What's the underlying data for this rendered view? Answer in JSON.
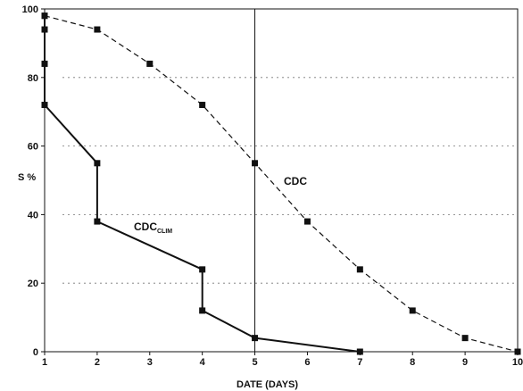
{
  "chart_data": {
    "type": "line",
    "title": "",
    "xlabel": "DATE (DAYS)",
    "ylabel": "S %",
    "xlim": [
      1,
      10
    ],
    "ylim": [
      0,
      100
    ],
    "x_ticks": [
      1,
      2,
      3,
      4,
      5,
      6,
      7,
      8,
      9,
      10
    ],
    "y_ticks": [
      0,
      20,
      40,
      60,
      80,
      100
    ],
    "grid": "horizontal dotted at 20, 40, 60, 80",
    "reference_line_x": 5,
    "series": [
      {
        "name": "CDC",
        "style": "dashed",
        "color": "#111111",
        "points": [
          [
            1,
            98
          ],
          [
            2,
            94
          ],
          [
            3,
            84
          ],
          [
            4,
            72
          ],
          [
            5,
            55
          ],
          [
            6,
            38
          ],
          [
            7,
            24
          ],
          [
            8,
            12
          ],
          [
            9,
            4
          ],
          [
            10,
            0
          ]
        ]
      },
      {
        "name": "CDC",
        "name_subscript": "CLIM",
        "style": "solid",
        "color": "#111111",
        "points": [
          [
            1,
            98
          ],
          [
            1,
            94
          ],
          [
            1,
            84
          ],
          [
            1,
            72
          ],
          [
            2,
            55
          ],
          [
            2,
            38
          ],
          [
            4,
            24
          ],
          [
            4,
            12
          ],
          [
            5,
            4
          ],
          [
            7,
            0
          ]
        ]
      }
    ]
  }
}
